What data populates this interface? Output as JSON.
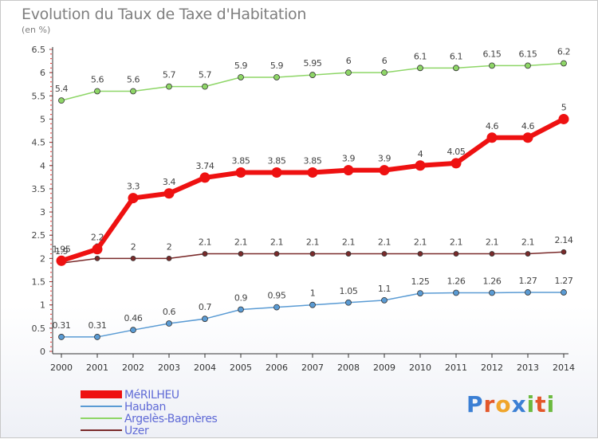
{
  "title": "Evolution du Taux de Taxe d'Habitation",
  "subtitle": "(en %)",
  "logo": {
    "letters": [
      {
        "ch": "P",
        "color": "#3b7fd4"
      },
      {
        "ch": "r",
        "color": "#e3572a"
      },
      {
        "ch": "o",
        "color": "#f0a52b"
      },
      {
        "ch": "x",
        "color": "#3b7fd4"
      },
      {
        "ch": "i",
        "color": "#6cba3f"
      },
      {
        "ch": "t",
        "color": "#e3572a"
      },
      {
        "ch": "i",
        "color": "#6cba3f"
      }
    ]
  },
  "chart_data": {
    "type": "line",
    "x": [
      "2000",
      "2001",
      "2002",
      "2003",
      "2004",
      "2005",
      "2006",
      "2007",
      "2008",
      "2009",
      "2010",
      "2011",
      "2012",
      "2013",
      "2014"
    ],
    "ylim": [
      0,
      6.5
    ],
    "yticks": [
      "0",
      "0.5",
      "1",
      "1.5",
      "2",
      "2.5",
      "3",
      "3.5",
      "4",
      "4.5",
      "5",
      "5.5",
      "6",
      "6.5"
    ],
    "grid": false,
    "legend_position": "bottom-left",
    "series": [
      {
        "name": "Uzer",
        "color": "#7a2a2a",
        "width": 1.5,
        "marker": 3,
        "values": [
          1.9,
          2,
          2,
          2,
          2.1,
          2.1,
          2.1,
          2.1,
          2.1,
          2.1,
          2.1,
          2.1,
          2.1,
          2.1,
          2.14
        ],
        "labels": [
          "1.9",
          "2",
          "2",
          "2",
          "2.1",
          "2.1",
          "2.1",
          "2.1",
          "2.1",
          "2.1",
          "2.1",
          "2.1",
          "2.1",
          "2.1",
          "2.14"
        ]
      },
      {
        "name": "Argelès-Bagnères",
        "color": "#8ed667",
        "width": 1.5,
        "marker": 3.5,
        "values": [
          5.4,
          5.6,
          5.6,
          5.7,
          5.7,
          5.9,
          5.9,
          5.95,
          6,
          6,
          6.1,
          6.1,
          6.15,
          6.15,
          6.2
        ],
        "labels": [
          "5.4",
          "5.6",
          "5.6",
          "5.7",
          "5.7",
          "5.9",
          "5.9",
          "5.95",
          "6",
          "6",
          "6.1",
          "6.1",
          "6.15",
          "6.15",
          "6.2"
        ]
      },
      {
        "name": "Hauban",
        "color": "#5a9bd4",
        "width": 1.5,
        "marker": 3.5,
        "values": [
          0.31,
          0.31,
          0.46,
          0.6,
          0.7,
          0.9,
          0.95,
          1,
          1.05,
          1.1,
          1.25,
          1.26,
          1.26,
          1.27,
          1.27
        ],
        "labels": [
          "0.31",
          "0.31",
          "0.46",
          "0.6",
          "0.7",
          "0.9",
          "0.95",
          "1",
          "1.05",
          "1.1",
          "1.25",
          "1.26",
          "1.26",
          "1.27",
          "1.27"
        ]
      },
      {
        "name": "MéRILHEU",
        "color": "#ee1111",
        "width": 6,
        "marker": 6.5,
        "values": [
          1.95,
          2.2,
          3.3,
          3.4,
          3.74,
          3.85,
          3.85,
          3.85,
          3.9,
          3.9,
          4,
          4.05,
          4.6,
          4.6,
          5
        ],
        "labels": [
          "1.95",
          "2.2",
          "3.3",
          "3.4",
          "3.74",
          "3.85",
          "3.85",
          "3.85",
          "3.9",
          "3.9",
          "4",
          "4.05",
          "4.6",
          "4.6",
          "5"
        ]
      }
    ],
    "legend": [
      {
        "name": "MéRILHEU",
        "color": "#ee1111",
        "thickness": 10
      },
      {
        "name": "Hauban",
        "color": "#5a9bd4",
        "thickness": 2
      },
      {
        "name": "Argelès-Bagnères",
        "color": "#8ed667",
        "thickness": 2
      },
      {
        "name": "Uzer",
        "color": "#7a2a2a",
        "thickness": 2
      }
    ]
  }
}
